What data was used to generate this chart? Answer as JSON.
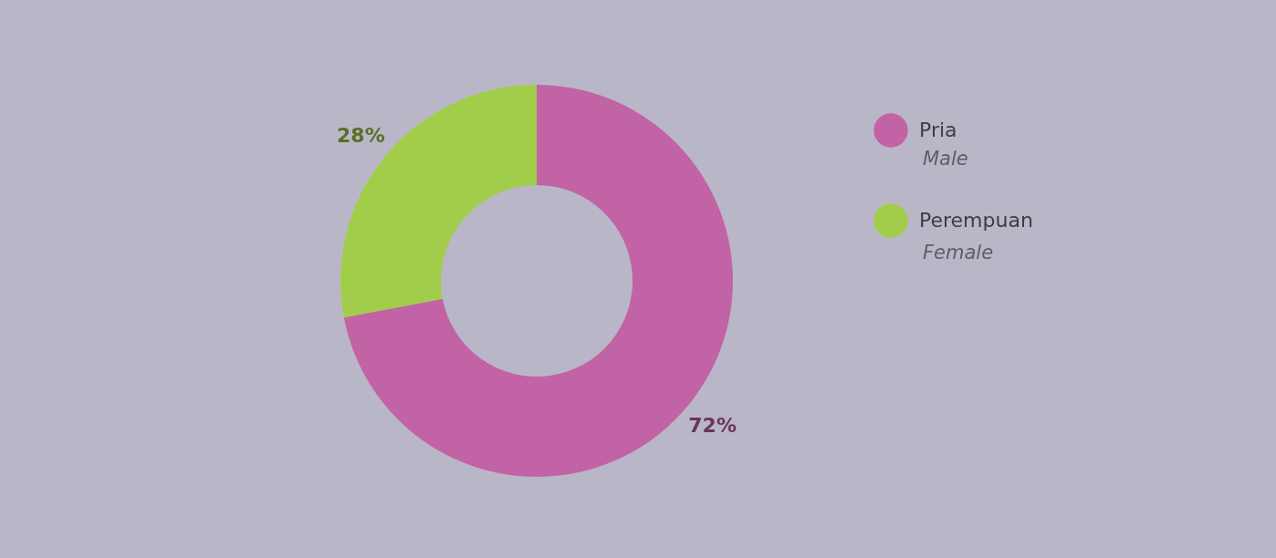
{
  "chart_data": {
    "type": "donut",
    "categories": [
      "Pria",
      "Perempuan"
    ],
    "values": [
      72,
      28
    ],
    "colors": [
      "#c263a6",
      "#a1cd4a"
    ],
    "value_labels": [
      "72%",
      "28%"
    ],
    "legend": "right",
    "annotations": [
      "Male",
      "Female"
    ]
  }
}
